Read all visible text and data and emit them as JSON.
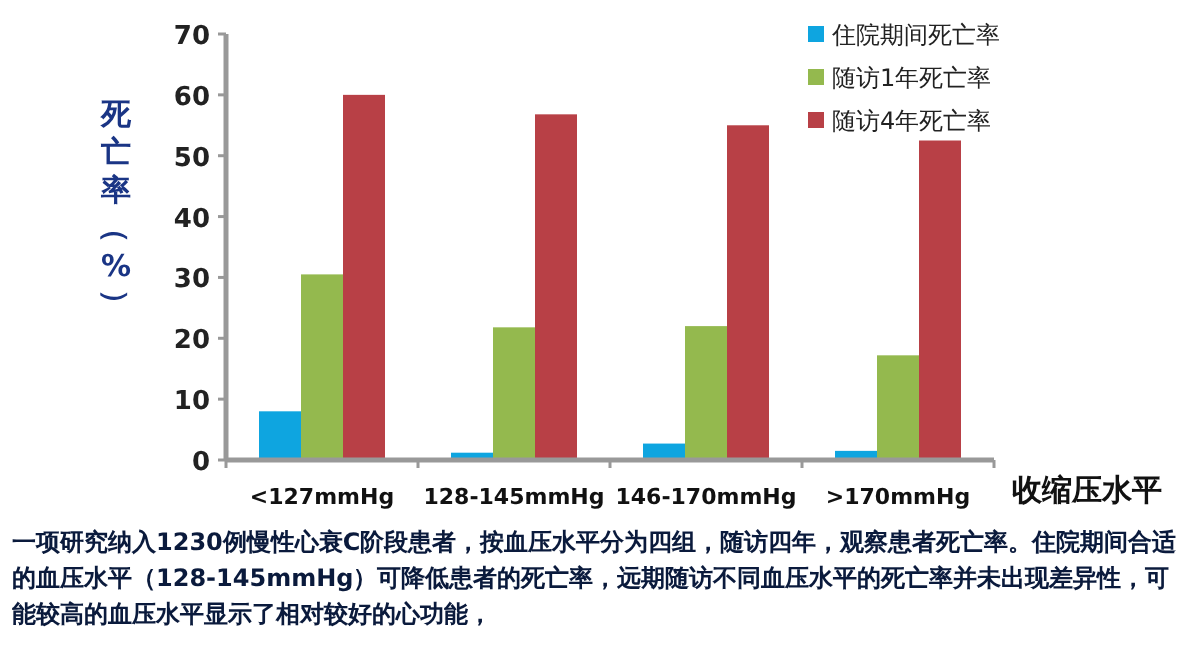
{
  "chart_data": {
    "type": "bar",
    "ylabel": "死亡率（%）",
    "xlabel": "收缩压水平",
    "categories": [
      "<127mmHg",
      "128-145mmHg",
      "146-170mmHg",
      ">170mmHg"
    ],
    "series": [
      {
        "name": "住院期间死亡率",
        "color": "#0ea5e0",
        "values": [
          8,
          1.2,
          2.7,
          1.5
        ]
      },
      {
        "name": "随访1年死亡率",
        "color": "#94b94e",
        "values": [
          30.5,
          21.8,
          22,
          17.2
        ]
      },
      {
        "name": "随访4年死亡率",
        "color": "#b84046",
        "values": [
          60,
          56.8,
          55,
          52.5
        ]
      }
    ],
    "ylim": [
      0,
      70
    ],
    "yticks": [
      0,
      10,
      20,
      30,
      40,
      50,
      60,
      70
    ],
    "grid": false,
    "legend": "top right",
    "annotations": [
      "一项研究纳入1230例慢性心衰C阶段患者，按血压水平分为四组，随访四年，观察患者死亡率。住院期间合适的血压水平（128-145mmHg）可降低患者的死亡率，远期随访不同血压水平的死亡率并未出现差异性，可能较高的血压水平显示了相对较好的心功能，"
    ]
  }
}
